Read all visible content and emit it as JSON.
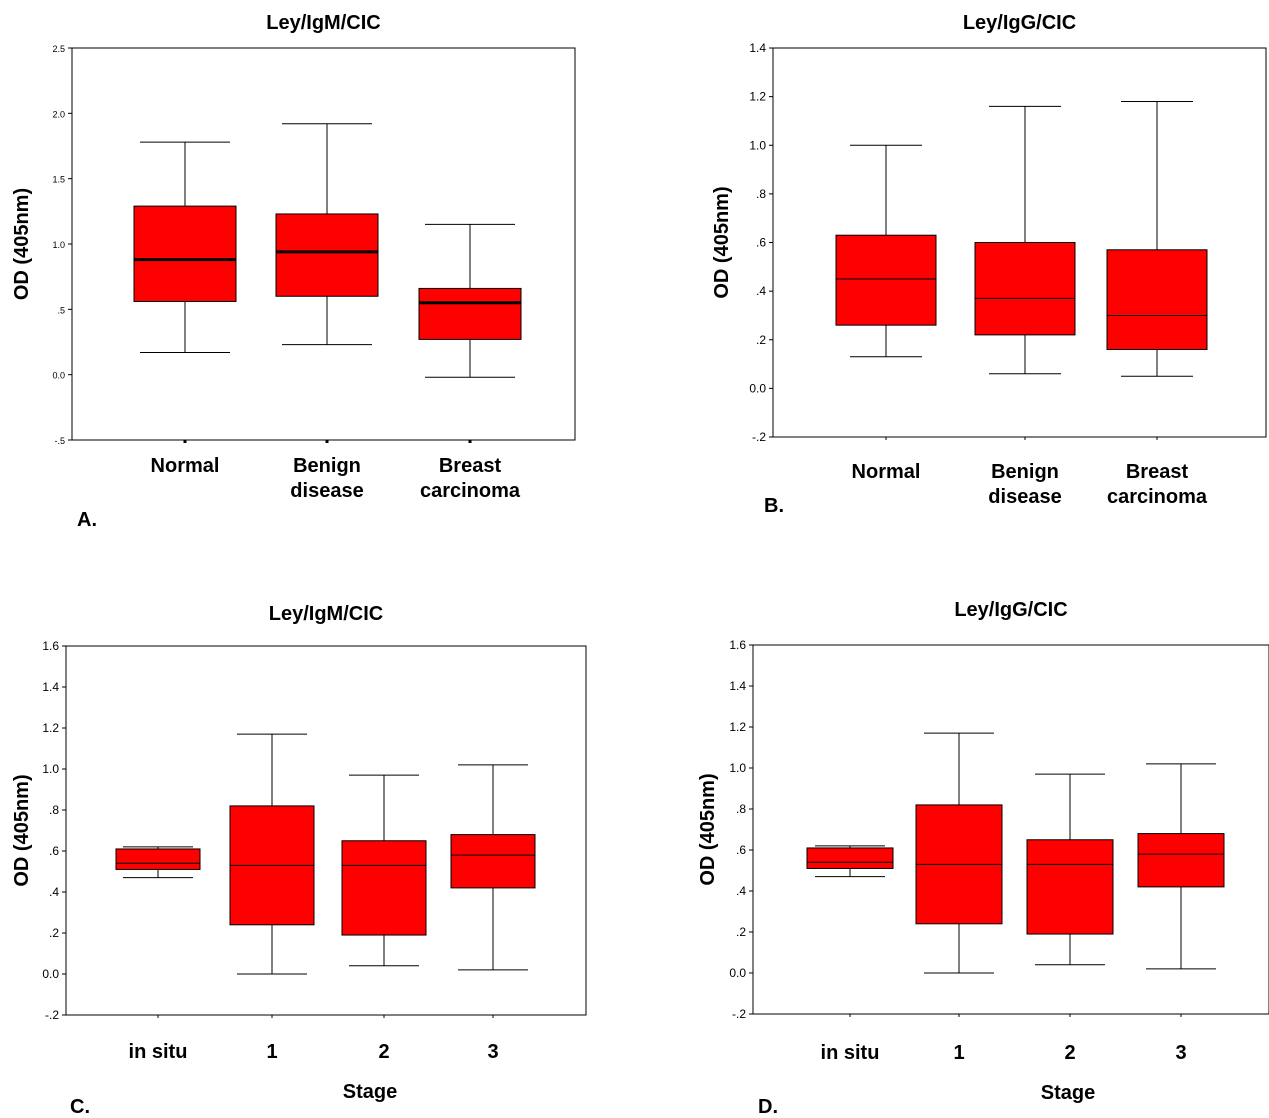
{
  "chart_data": [
    {
      "id": "A",
      "type": "box",
      "title": "Ley/IgM/CIC",
      "panel_label": "A.",
      "ylabel": "OD (405nm)",
      "xlabel": "",
      "ylim": [
        -0.5,
        2.5
      ],
      "yticks": [
        -0.5,
        0.0,
        0.5,
        1.0,
        1.5,
        2.0,
        2.5
      ],
      "ytick_labels": [
        "-.5",
        "0.0",
        ".5",
        "1.0",
        "1.5",
        "2.0",
        "2.5"
      ],
      "categories": [
        [
          "Normal"
        ],
        [
          "Benign",
          "disease"
        ],
        [
          "Breast",
          "carcinoma"
        ]
      ],
      "boxes": [
        {
          "min": 0.17,
          "q1": 0.56,
          "median": 0.88,
          "q3": 1.29,
          "max": 1.78
        },
        {
          "min": 0.23,
          "q1": 0.6,
          "median": 0.94,
          "q3": 1.23,
          "max": 1.92
        },
        {
          "min": -0.02,
          "q1": 0.27,
          "median": 0.55,
          "q3": 0.66,
          "max": 1.15
        }
      ],
      "color": "#ff0000",
      "thick_median": true
    },
    {
      "id": "B",
      "type": "box",
      "title": "Ley/IgG/CIC",
      "panel_label": "B.",
      "ylabel": "OD (405nm)",
      "xlabel": "",
      "ylim": [
        -0.2,
        1.4
      ],
      "yticks": [
        -0.2,
        0.0,
        0.2,
        0.4,
        0.6,
        0.8,
        1.0,
        1.2,
        1.4
      ],
      "ytick_labels": [
        "-.2",
        "0.0",
        ".2",
        ".4",
        ".6",
        ".8",
        "1.0",
        "1.2",
        "1.4"
      ],
      "categories": [
        [
          "Normal"
        ],
        [
          "Benign",
          "disease"
        ],
        [
          "Breast",
          "carcinoma"
        ]
      ],
      "boxes": [
        {
          "min": 0.13,
          "q1": 0.26,
          "median": 0.45,
          "q3": 0.63,
          "max": 1.0
        },
        {
          "min": 0.06,
          "q1": 0.22,
          "median": 0.37,
          "q3": 0.6,
          "max": 1.16
        },
        {
          "min": 0.05,
          "q1": 0.16,
          "median": 0.3,
          "q3": 0.57,
          "max": 1.18
        }
      ],
      "color": "#ff0000",
      "thick_median": false
    },
    {
      "id": "C",
      "type": "box",
      "title": "Ley/IgM/CIC",
      "panel_label": "C.",
      "ylabel": "OD (405nm)",
      "xlabel": "Stage",
      "ylim": [
        -0.2,
        1.6
      ],
      "yticks": [
        -0.2,
        0.0,
        0.2,
        0.4,
        0.6,
        0.8,
        1.0,
        1.2,
        1.4,
        1.6
      ],
      "ytick_labels": [
        "-.2",
        "0.0",
        ".2",
        ".4",
        ".6",
        ".8",
        "1.0",
        "1.2",
        "1.4",
        "1.6"
      ],
      "categories": [
        [
          "in situ"
        ],
        [
          "1"
        ],
        [
          "2"
        ],
        [
          "3"
        ]
      ],
      "boxes": [
        {
          "min": 0.47,
          "q1": 0.51,
          "median": 0.54,
          "q3": 0.61,
          "max": 0.62
        },
        {
          "min": 0.0,
          "q1": 0.24,
          "median": 0.53,
          "q3": 0.82,
          "max": 1.17
        },
        {
          "min": 0.04,
          "q1": 0.19,
          "median": 0.53,
          "q3": 0.65,
          "max": 0.97
        },
        {
          "min": 0.02,
          "q1": 0.42,
          "median": 0.58,
          "q3": 0.68,
          "max": 1.02
        }
      ],
      "color": "#ff0000",
      "thick_median": false
    },
    {
      "id": "D",
      "type": "box",
      "title": "Ley/IgG/CIC",
      "panel_label": "D.",
      "ylabel": "OD (405nm)",
      "xlabel": "Stage",
      "ylim": [
        -0.2,
        1.6
      ],
      "yticks": [
        -0.2,
        0.0,
        0.2,
        0.4,
        0.6,
        0.8,
        1.0,
        1.2,
        1.4,
        1.6
      ],
      "ytick_labels": [
        "-.2",
        "0.0",
        ".2",
        ".4",
        ".6",
        ".8",
        "1.0",
        "1.2",
        "1.4",
        "1.6"
      ],
      "categories": [
        [
          "in situ"
        ],
        [
          "1"
        ],
        [
          "2"
        ],
        [
          "3"
        ]
      ],
      "boxes": [
        {
          "min": 0.47,
          "q1": 0.51,
          "median": 0.54,
          "q3": 0.61,
          "max": 0.62
        },
        {
          "min": 0.0,
          "q1": 0.24,
          "median": 0.53,
          "q3": 0.82,
          "max": 1.17
        },
        {
          "min": 0.04,
          "q1": 0.19,
          "median": 0.53,
          "q3": 0.65,
          "max": 0.97
        },
        {
          "min": 0.02,
          "q1": 0.42,
          "median": 0.58,
          "q3": 0.68,
          "max": 1.02
        }
      ],
      "color": "#ff0000",
      "thick_median": false
    }
  ]
}
